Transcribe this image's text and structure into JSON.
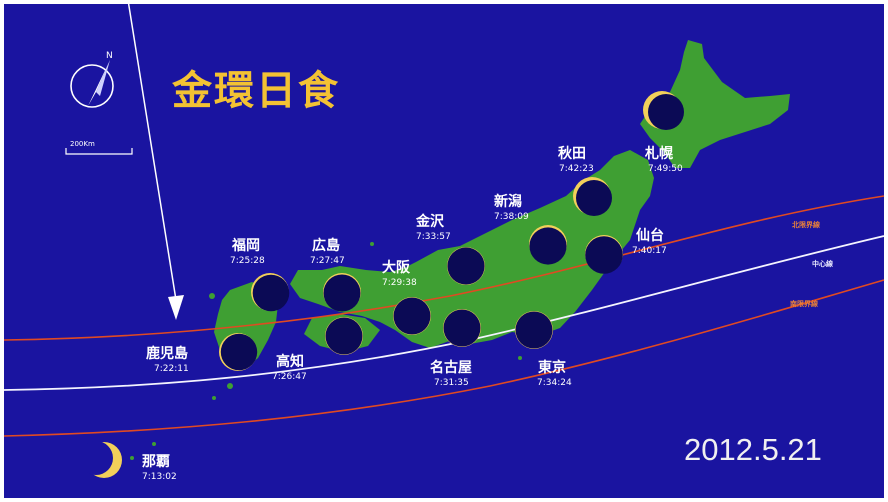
{
  "title": "金環日食",
  "date": "2012.5.21",
  "scale_label": "200Km",
  "compass": {
    "direction": "N",
    "icon": "compass-north-icon"
  },
  "colors": {
    "background": "#1a14a0",
    "land": "#3f9f33",
    "title": "#f3c233",
    "north_limit": "#e04a22",
    "center_line": "#f4f4ff",
    "south_limit": "#e04a22",
    "eclipse_disk": "#0b0a55",
    "annulus": "#f2d05a",
    "arrow": "#ffffff"
  },
  "lines": {
    "north_limit_label": "北限界線",
    "center_label": "中心線",
    "south_limit_label": "南限界線"
  },
  "cities": [
    {
      "key": "sapporo",
      "name": "札幌",
      "time": "7:49:50"
    },
    {
      "key": "akita",
      "name": "秋田",
      "time": "7:42:23"
    },
    {
      "key": "niigata",
      "name": "新潟",
      "time": "7:38:09"
    },
    {
      "key": "sendai",
      "name": "仙台",
      "time": "7:40:17"
    },
    {
      "key": "kanazawa",
      "name": "金沢",
      "time": "7:33:57"
    },
    {
      "key": "tokyo",
      "name": "東京",
      "time": "7:34:24"
    },
    {
      "key": "nagoya",
      "name": "名古屋",
      "time": "7:31:35"
    },
    {
      "key": "osaka",
      "name": "大阪",
      "time": "7:29:38"
    },
    {
      "key": "hiroshima",
      "name": "広島",
      "time": "7:27:47"
    },
    {
      "key": "fukuoka",
      "name": "福岡",
      "time": "7:25:28"
    },
    {
      "key": "kochi",
      "name": "高知",
      "time": "7:26:47"
    },
    {
      "key": "kagoshima",
      "name": "鹿児島",
      "time": "7:22:11"
    },
    {
      "key": "naha",
      "name": "那覇",
      "time": "7:13:02"
    }
  ]
}
